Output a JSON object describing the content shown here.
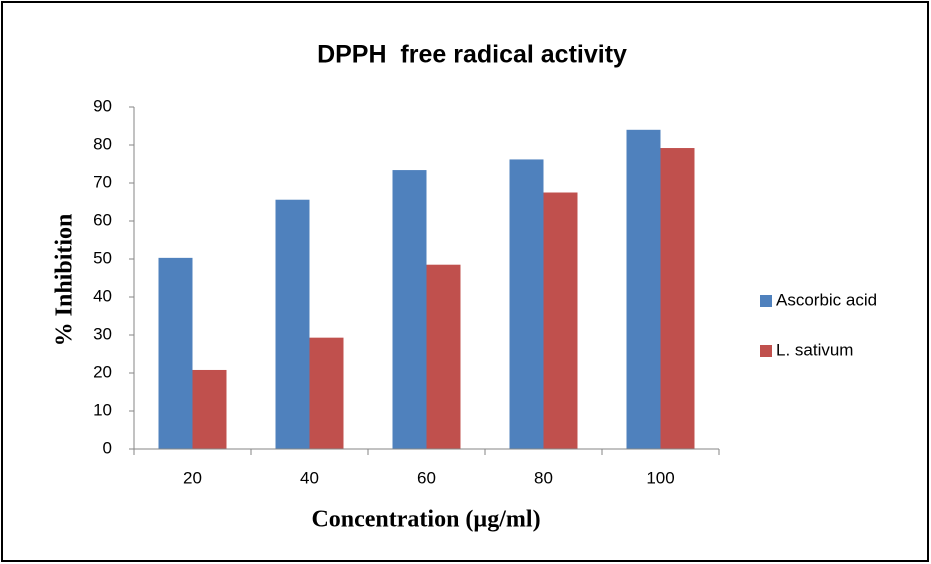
{
  "chart_data": {
    "type": "bar",
    "title": "DPPH  free radical activity",
    "x_label": "Concentration (µg/ml)",
    "y_label": "% Inhibition",
    "categories": [
      "20",
      "40",
      "60",
      "80",
      "100"
    ],
    "series": [
      {
        "name": "Ascorbic acid",
        "color": "#4f81bd",
        "values": [
          50.3,
          65.6,
          73.4,
          76.2,
          84
        ]
      },
      {
        "name": "L. sativum",
        "color": "#c0504d",
        "values": [
          20.8,
          29.3,
          48.5,
          67.5,
          79.2
        ]
      }
    ],
    "ylim": [
      0,
      90
    ],
    "yticks": [
      0,
      10,
      20,
      30,
      40,
      50,
      60,
      70,
      80,
      90
    ],
    "grid": false,
    "legend": "right"
  }
}
